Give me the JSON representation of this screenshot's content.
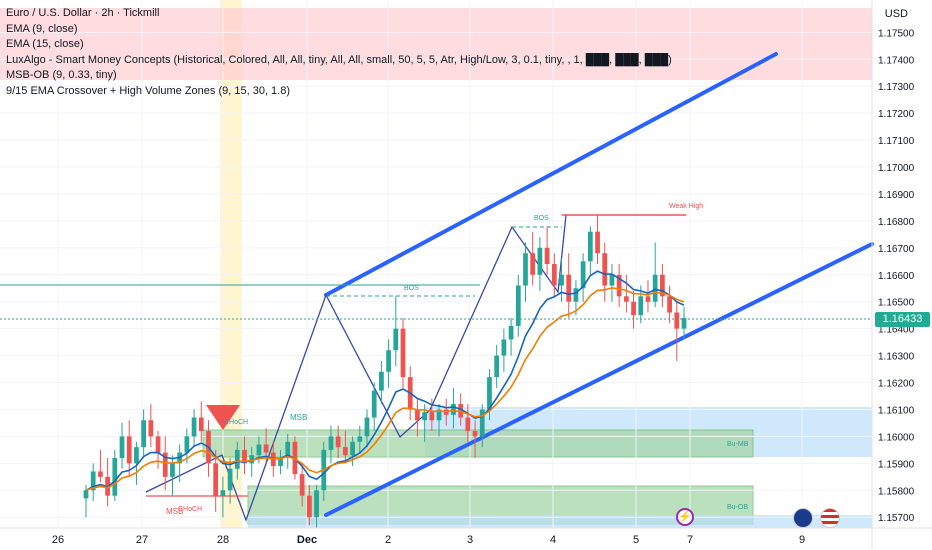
{
  "legend": {
    "title": "Euro / U.S. Dollar · 2h · Tickmill",
    "ind1": "EMA (9, close)",
    "ind2": "EMA (15, close)",
    "ind3": "LuxAlgo - Smart Money Concepts (Historical, Colored, All, All, tiny, All, All, small, 50, 5, 5, Atr, High/Low, 3, 0.1, tiny, , 1, ███, ███, ███)",
    "ind4": "MSB-OB (9, 0.33, tiny)",
    "ind5": "9/15 EMA Crossover + High Volume Zones (9, 15, 30, 1.8)"
  },
  "axis": {
    "currency": "USD",
    "price_labels": [
      "1.17500",
      "1.17400",
      "1.17300",
      "1.17200",
      "1.17100",
      "1.17000",
      "1.16900",
      "1.16800",
      "1.16700",
      "1.16600",
      "1.16500",
      "1.16400",
      "1.16300",
      "1.16200",
      "1.16100",
      "1.16000",
      "1.15900",
      "1.15800",
      "1.15700"
    ],
    "time_labels": [
      "26",
      "27",
      "28",
      "Dec",
      "2",
      "3",
      "4",
      "5",
      "7",
      "9"
    ],
    "last_price": "1.16433"
  },
  "annotations": {
    "bos1": "BOS",
    "bos2": "BOS",
    "weak_high": "Weak High",
    "choch1": "CHoCH",
    "choch2": "CHoCH",
    "msb1": "MSB",
    "msb2": "MSB",
    "zone1": "Bu-MB",
    "zone2": "Bu-OB"
  },
  "colors": {
    "up": "#26a69a",
    "down": "#ef5350",
    "ema9": "#1565c0",
    "ema15": "#f57c00",
    "channel": "#2962ff",
    "zone_green": "#a5d6a7",
    "zone_blue": "#bbdefb",
    "zone_red": "#ffcdd2"
  },
  "chart_data": {
    "type": "candlestick",
    "symbol": "EURUSD",
    "timeframe": "2h",
    "ylim": [
      1.1566,
      1.1762
    ],
    "y_step": 0.001,
    "grid": true,
    "candles": [
      [
        1.1577,
        1.1582,
        1.157,
        1.158
      ],
      [
        1.158,
        1.159,
        1.1576,
        1.1587
      ],
      [
        1.1587,
        1.1595,
        1.1583,
        1.1585
      ],
      [
        1.1585,
        1.1592,
        1.1574,
        1.1578
      ],
      [
        1.1578,
        1.1595,
        1.1576,
        1.1592
      ],
      [
        1.1592,
        1.1605,
        1.1588,
        1.16
      ],
      [
        1.16,
        1.1606,
        1.1585,
        1.159
      ],
      [
        1.159,
        1.1598,
        1.1582,
        1.1596
      ],
      [
        1.1596,
        1.161,
        1.1592,
        1.1606
      ],
      [
        1.1606,
        1.1612,
        1.1596,
        1.16
      ],
      [
        1.16,
        1.1602,
        1.1588,
        1.1594
      ],
      [
        1.1594,
        1.16,
        1.158,
        1.1585
      ],
      [
        1.1585,
        1.1593,
        1.1578,
        1.159
      ],
      [
        1.159,
        1.1597,
        1.1583,
        1.1594
      ],
      [
        1.1594,
        1.1603,
        1.159,
        1.16
      ],
      [
        1.16,
        1.161,
        1.1596,
        1.1607
      ],
      [
        1.1607,
        1.1613,
        1.1598,
        1.1602
      ],
      [
        1.1602,
        1.1606,
        1.1585,
        1.159
      ],
      [
        1.159,
        1.1595,
        1.1572,
        1.1578
      ],
      [
        1.1578,
        1.1585,
        1.157,
        1.158
      ],
      [
        1.158,
        1.1592,
        1.1575,
        1.1588
      ],
      [
        1.1588,
        1.1598,
        1.1584,
        1.1595
      ],
      [
        1.1595,
        1.16,
        1.1586,
        1.159
      ],
      [
        1.159,
        1.1596,
        1.1585,
        1.1593
      ],
      [
        1.1593,
        1.16,
        1.159,
        1.1597
      ],
      [
        1.1597,
        1.1603,
        1.159,
        1.1594
      ],
      [
        1.1594,
        1.1598,
        1.1585,
        1.1589
      ],
      [
        1.1589,
        1.1595,
        1.1586,
        1.1592
      ],
      [
        1.1592,
        1.1601,
        1.1588,
        1.1598
      ],
      [
        1.1598,
        1.16,
        1.1584,
        1.1586
      ],
      [
        1.1586,
        1.159,
        1.1574,
        1.1578
      ],
      [
        1.1578,
        1.1582,
        1.1567,
        1.157
      ],
      [
        1.157,
        1.1582,
        1.1566,
        1.158
      ],
      [
        1.158,
        1.1598,
        1.1576,
        1.1595
      ],
      [
        1.1595,
        1.1604,
        1.159,
        1.16
      ],
      [
        1.16,
        1.1604,
        1.1592,
        1.1596
      ],
      [
        1.1596,
        1.1602,
        1.159,
        1.1593
      ],
      [
        1.1593,
        1.16,
        1.1589,
        1.1598
      ],
      [
        1.1598,
        1.1604,
        1.1594,
        1.16
      ],
      [
        1.16,
        1.161,
        1.1596,
        1.1607
      ],
      [
        1.1607,
        1.162,
        1.1602,
        1.1617
      ],
      [
        1.1617,
        1.1628,
        1.1612,
        1.1624
      ],
      [
        1.1624,
        1.1636,
        1.1618,
        1.1632
      ],
      [
        1.1632,
        1.1652,
        1.1626,
        1.164
      ],
      [
        1.164,
        1.1644,
        1.1618,
        1.1622
      ],
      [
        1.1622,
        1.1626,
        1.1606,
        1.161
      ],
      [
        1.161,
        1.1614,
        1.16,
        1.1606
      ],
      [
        1.1606,
        1.1612,
        1.1598,
        1.1609
      ],
      [
        1.1609,
        1.1614,
        1.1602,
        1.1606
      ],
      [
        1.1606,
        1.1612,
        1.16,
        1.161
      ],
      [
        1.161,
        1.1614,
        1.1604,
        1.1608
      ],
      [
        1.1608,
        1.1618,
        1.1603,
        1.1612
      ],
      [
        1.1612,
        1.1616,
        1.1604,
        1.1607
      ],
      [
        1.1607,
        1.1612,
        1.1598,
        1.1602
      ],
      [
        1.1602,
        1.1606,
        1.1592,
        1.16
      ],
      [
        1.16,
        1.1612,
        1.1596,
        1.161
      ],
      [
        1.161,
        1.1625,
        1.1606,
        1.1622
      ],
      [
        1.1622,
        1.1634,
        1.1618,
        1.163
      ],
      [
        1.163,
        1.164,
        1.1624,
        1.1636
      ],
      [
        1.1636,
        1.1644,
        1.163,
        1.1641
      ],
      [
        1.1641,
        1.166,
        1.1637,
        1.1656
      ],
      [
        1.1656,
        1.1672,
        1.165,
        1.1668
      ],
      [
        1.1668,
        1.1676,
        1.1656,
        1.166
      ],
      [
        1.166,
        1.1674,
        1.1654,
        1.167
      ],
      [
        1.167,
        1.1678,
        1.166,
        1.1664
      ],
      [
        1.1664,
        1.1668,
        1.1652,
        1.1656
      ],
      [
        1.1656,
        1.1666,
        1.165,
        1.166
      ],
      [
        1.166,
        1.1668,
        1.1644,
        1.165
      ],
      [
        1.165,
        1.1658,
        1.1645,
        1.1655
      ],
      [
        1.1655,
        1.1668,
        1.165,
        1.1665
      ],
      [
        1.1665,
        1.1678,
        1.166,
        1.1676
      ],
      [
        1.1676,
        1.1682,
        1.1664,
        1.1668
      ],
      [
        1.1668,
        1.1672,
        1.165,
        1.1656
      ],
      [
        1.1656,
        1.1664,
        1.165,
        1.166
      ],
      [
        1.166,
        1.1664,
        1.1648,
        1.1652
      ],
      [
        1.1652,
        1.166,
        1.1646,
        1.165
      ],
      [
        1.165,
        1.1654,
        1.164,
        1.1645
      ],
      [
        1.1645,
        1.1656,
        1.1642,
        1.1652
      ],
      [
        1.1652,
        1.1658,
        1.1646,
        1.165
      ],
      [
        1.165,
        1.1672,
        1.1648,
        1.166
      ],
      [
        1.166,
        1.1664,
        1.1648,
        1.1652
      ],
      [
        1.1652,
        1.1656,
        1.1642,
        1.1646
      ],
      [
        1.1646,
        1.165,
        1.1628,
        1.164
      ],
      [
        1.164,
        1.1648,
        1.1636,
        1.1644
      ]
    ]
  }
}
